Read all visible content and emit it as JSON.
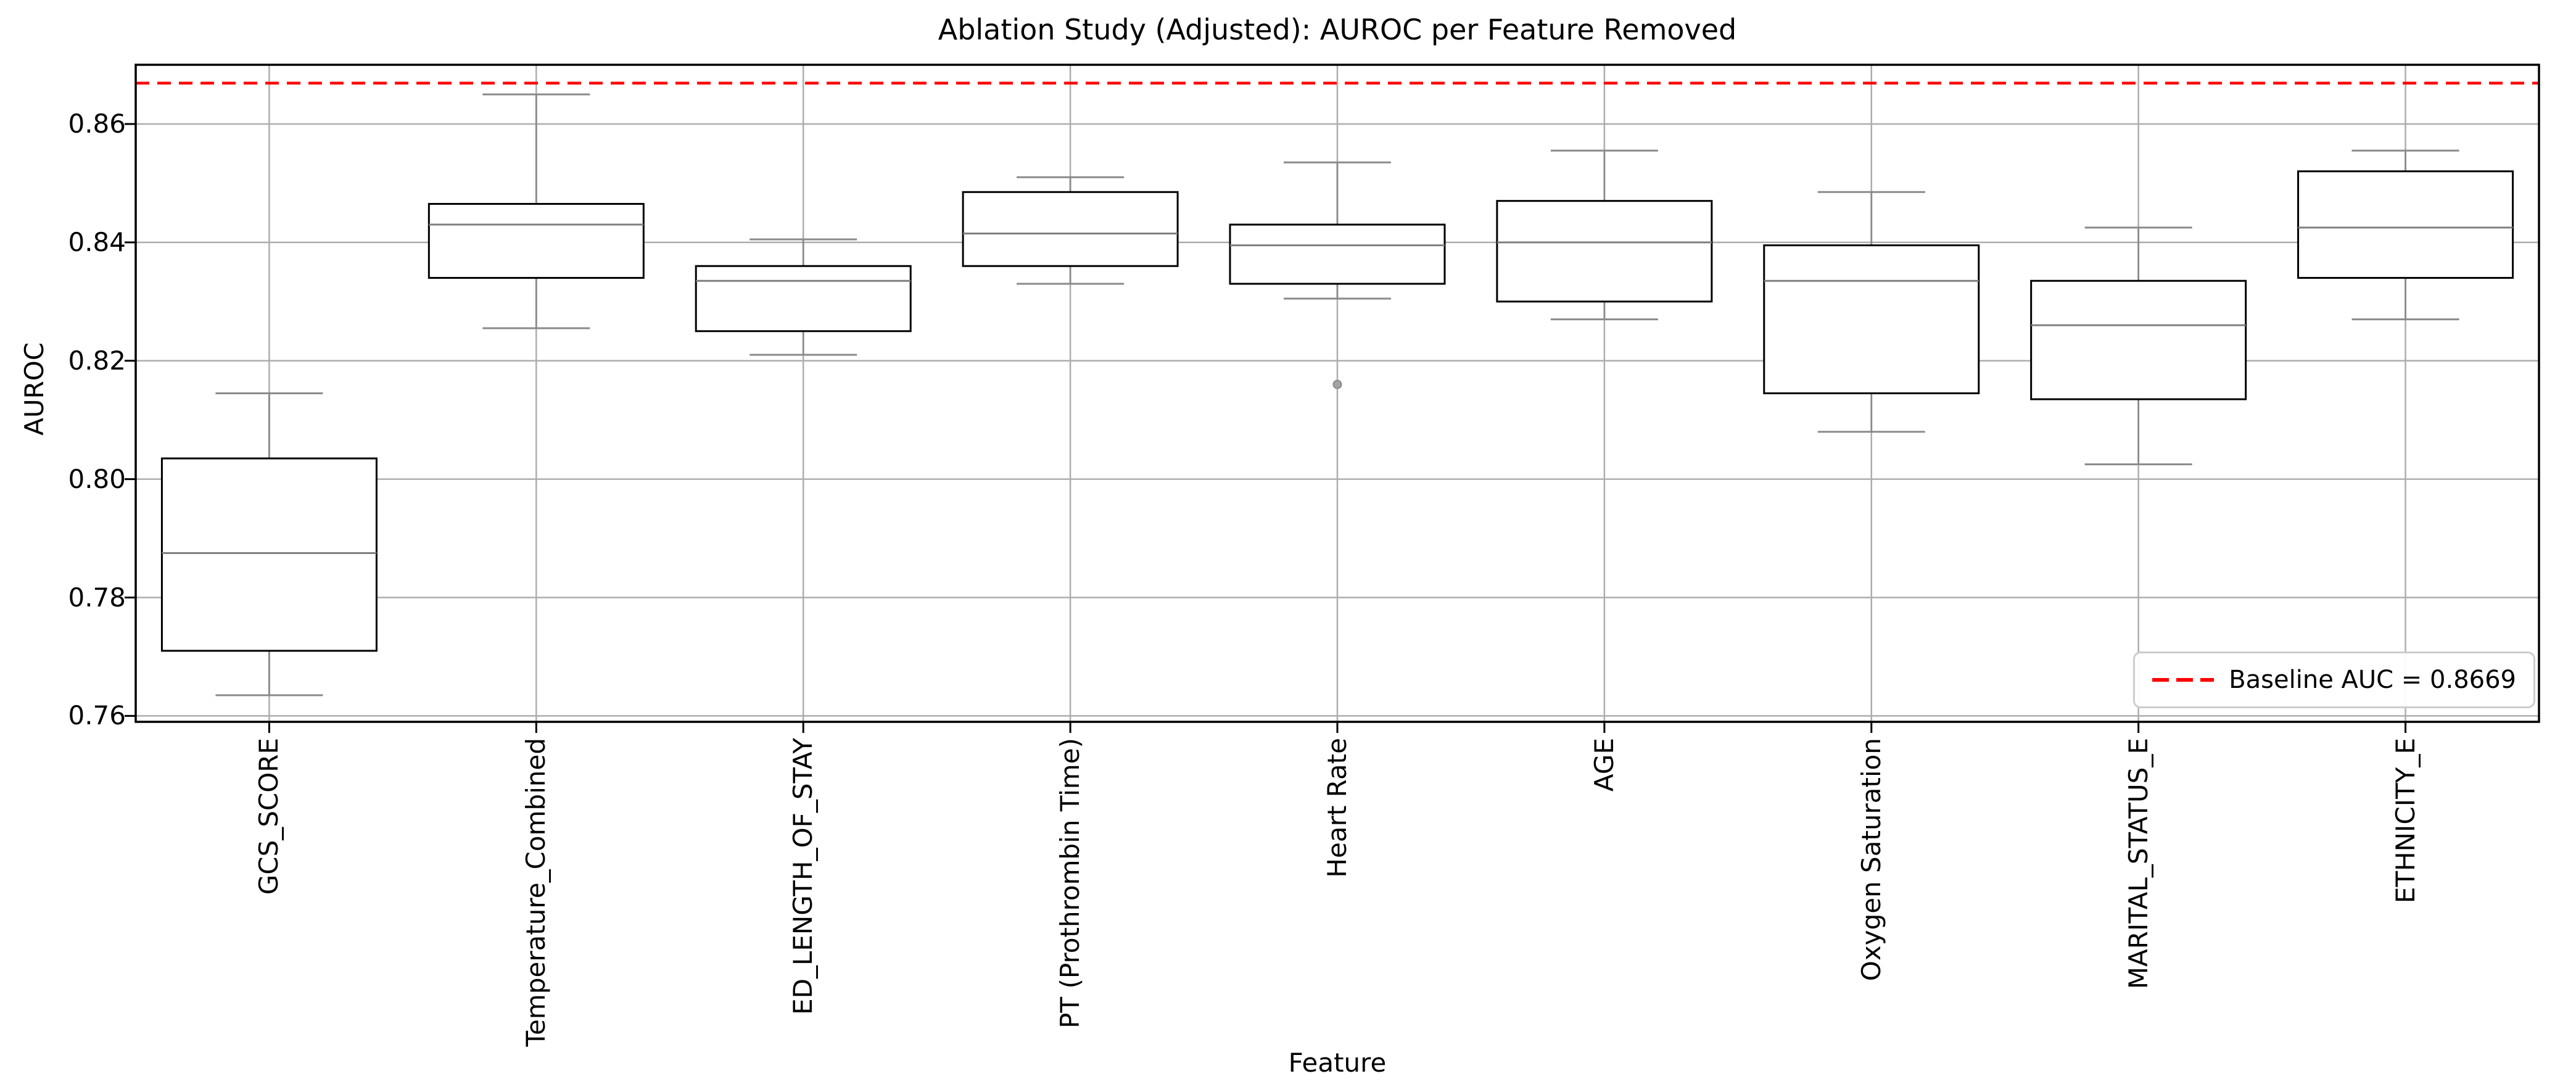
{
  "chart_data": {
    "type": "box",
    "title": "Ablation Study (Adjusted): AUROC per Feature Removed",
    "xlabel": "Feature",
    "ylabel": "AUROC",
    "categories": [
      "GCS_SCORE",
      "Temperature_Combined",
      "ED_LENGTH_OF_STAY",
      "PT (Prothrombin Time)",
      "Heart Rate",
      "AGE",
      "Oxygen Saturation",
      "MARITAL_STATUS_E",
      "ETHNICITY_E"
    ],
    "boxes": [
      {
        "name": "GCS_SCORE",
        "whislo": 0.7635,
        "q1": 0.771,
        "med": 0.7875,
        "q3": 0.8035,
        "whishi": 0.8145,
        "fliers": []
      },
      {
        "name": "Temperature_Combined",
        "whislo": 0.8255,
        "q1": 0.834,
        "med": 0.843,
        "q3": 0.8465,
        "whishi": 0.865,
        "fliers": []
      },
      {
        "name": "ED_LENGTH_OF_STAY",
        "whislo": 0.821,
        "q1": 0.825,
        "med": 0.8335,
        "q3": 0.836,
        "whishi": 0.8405,
        "fliers": []
      },
      {
        "name": "PT (Prothrombin Time)",
        "whislo": 0.833,
        "q1": 0.836,
        "med": 0.8415,
        "q3": 0.8485,
        "whishi": 0.851,
        "fliers": []
      },
      {
        "name": "Heart Rate",
        "whislo": 0.8305,
        "q1": 0.833,
        "med": 0.8395,
        "q3": 0.843,
        "whishi": 0.8535,
        "fliers": [
          0.816
        ]
      },
      {
        "name": "AGE",
        "whislo": 0.827,
        "q1": 0.83,
        "med": 0.84,
        "q3": 0.847,
        "whishi": 0.8555,
        "fliers": []
      },
      {
        "name": "Oxygen Saturation",
        "whislo": 0.808,
        "q1": 0.8145,
        "med": 0.8335,
        "q3": 0.8395,
        "whishi": 0.8485,
        "fliers": []
      },
      {
        "name": "MARITAL_STATUS_E",
        "whislo": 0.8025,
        "q1": 0.8135,
        "med": 0.826,
        "q3": 0.8335,
        "whishi": 0.8425,
        "fliers": []
      },
      {
        "name": "ETHNICITY_E",
        "whislo": 0.827,
        "q1": 0.834,
        "med": 0.8425,
        "q3": 0.852,
        "whishi": 0.8555,
        "fliers": []
      }
    ],
    "ytick_labels": [
      "0.76",
      "0.78",
      "0.80",
      "0.82",
      "0.84",
      "0.86"
    ],
    "ytick_values": [
      0.76,
      0.78,
      0.8,
      0.82,
      0.84,
      0.86
    ],
    "ylim": [
      0.759,
      0.87
    ],
    "grid": true,
    "baseline": {
      "value": 0.8669,
      "color": "#ff0000",
      "style": "dashed"
    },
    "legend": {
      "label": "Baseline AUC = 0.8669",
      "position": "lower right",
      "line_color": "#ff0000"
    },
    "colors": {
      "box_edge": "#000000",
      "box_fill": "#ffffff",
      "median": "#7f7f7f",
      "whisker": "#8a8a8a",
      "cap": "#8a8a8a",
      "grid": "#adadad",
      "outlier_fill": "#a3a3a3",
      "outlier_edge": "#8a8a8a",
      "baseline": "#ff0000",
      "spine": "#000000",
      "text": "#000000"
    }
  }
}
